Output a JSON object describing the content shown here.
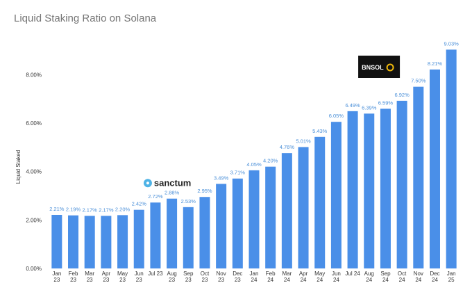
{
  "chart_data": {
    "type": "bar",
    "title": "Liquid Staking Ratio on Solana",
    "ylabel": "Liquid Staked",
    "xlabel": "",
    "ylim": [
      0,
      9.5
    ],
    "yticks": [
      "0.00%",
      "2.00%",
      "4.00%",
      "6.00%",
      "8.00%"
    ],
    "ytick_values": [
      0,
      2,
      4,
      6,
      8
    ],
    "grid": false,
    "bar_color": "#4a8fe8",
    "label_color": "#4a8fd8",
    "categories": [
      [
        "Jan",
        "23"
      ],
      [
        "Feb",
        "23"
      ],
      [
        "Mar",
        "23"
      ],
      [
        "Apr",
        "23"
      ],
      [
        "May",
        "23"
      ],
      [
        "Jun",
        "23"
      ],
      [
        "Jul 23",
        ""
      ],
      [
        "Aug",
        "23"
      ],
      [
        "Sep",
        "23"
      ],
      [
        "Oct",
        "23"
      ],
      [
        "Nov",
        "23"
      ],
      [
        "Dec",
        "23"
      ],
      [
        "Jan",
        "24"
      ],
      [
        "Feb",
        "24"
      ],
      [
        "Mar",
        "24"
      ],
      [
        "Apr",
        "24"
      ],
      [
        "May",
        "24"
      ],
      [
        "Jun",
        "24"
      ],
      [
        "Jul 24",
        ""
      ],
      [
        "Aug",
        "24"
      ],
      [
        "Sep",
        "24"
      ],
      [
        "Oct",
        "24"
      ],
      [
        "Nov",
        "24"
      ],
      [
        "Dec",
        "24"
      ],
      [
        "Jan",
        "25"
      ]
    ],
    "values": [
      2.21,
      2.19,
      2.17,
      2.17,
      2.2,
      2.42,
      2.72,
      2.88,
      2.53,
      2.95,
      3.49,
      3.71,
      4.05,
      4.2,
      4.76,
      5.01,
      5.43,
      6.05,
      6.49,
      6.39,
      6.59,
      6.92,
      7.5,
      8.21,
      9.03
    ],
    "data_labels": [
      "2.21%",
      "2.19%",
      "2.17%",
      "2.17%",
      "2.20%",
      "2.42%",
      "2.72%",
      "2.88%",
      "2.53%",
      "2.95%",
      "3.49%",
      "3.71%",
      "4.05%",
      "4.20%",
      "4.76%",
      "5.01%",
      "5.43%",
      "6.05%",
      "6.49%",
      "6.39%",
      "6.59%",
      "6.92%",
      "7.50%",
      "8.21%",
      "9.03%"
    ],
    "annotations": [
      {
        "text": "sanctum",
        "category_index": 6,
        "icon": "sanctum-logo-icon"
      },
      {
        "text": "BNSOL",
        "category_index": 18,
        "icon": "bnsol-logo-icon"
      }
    ]
  }
}
